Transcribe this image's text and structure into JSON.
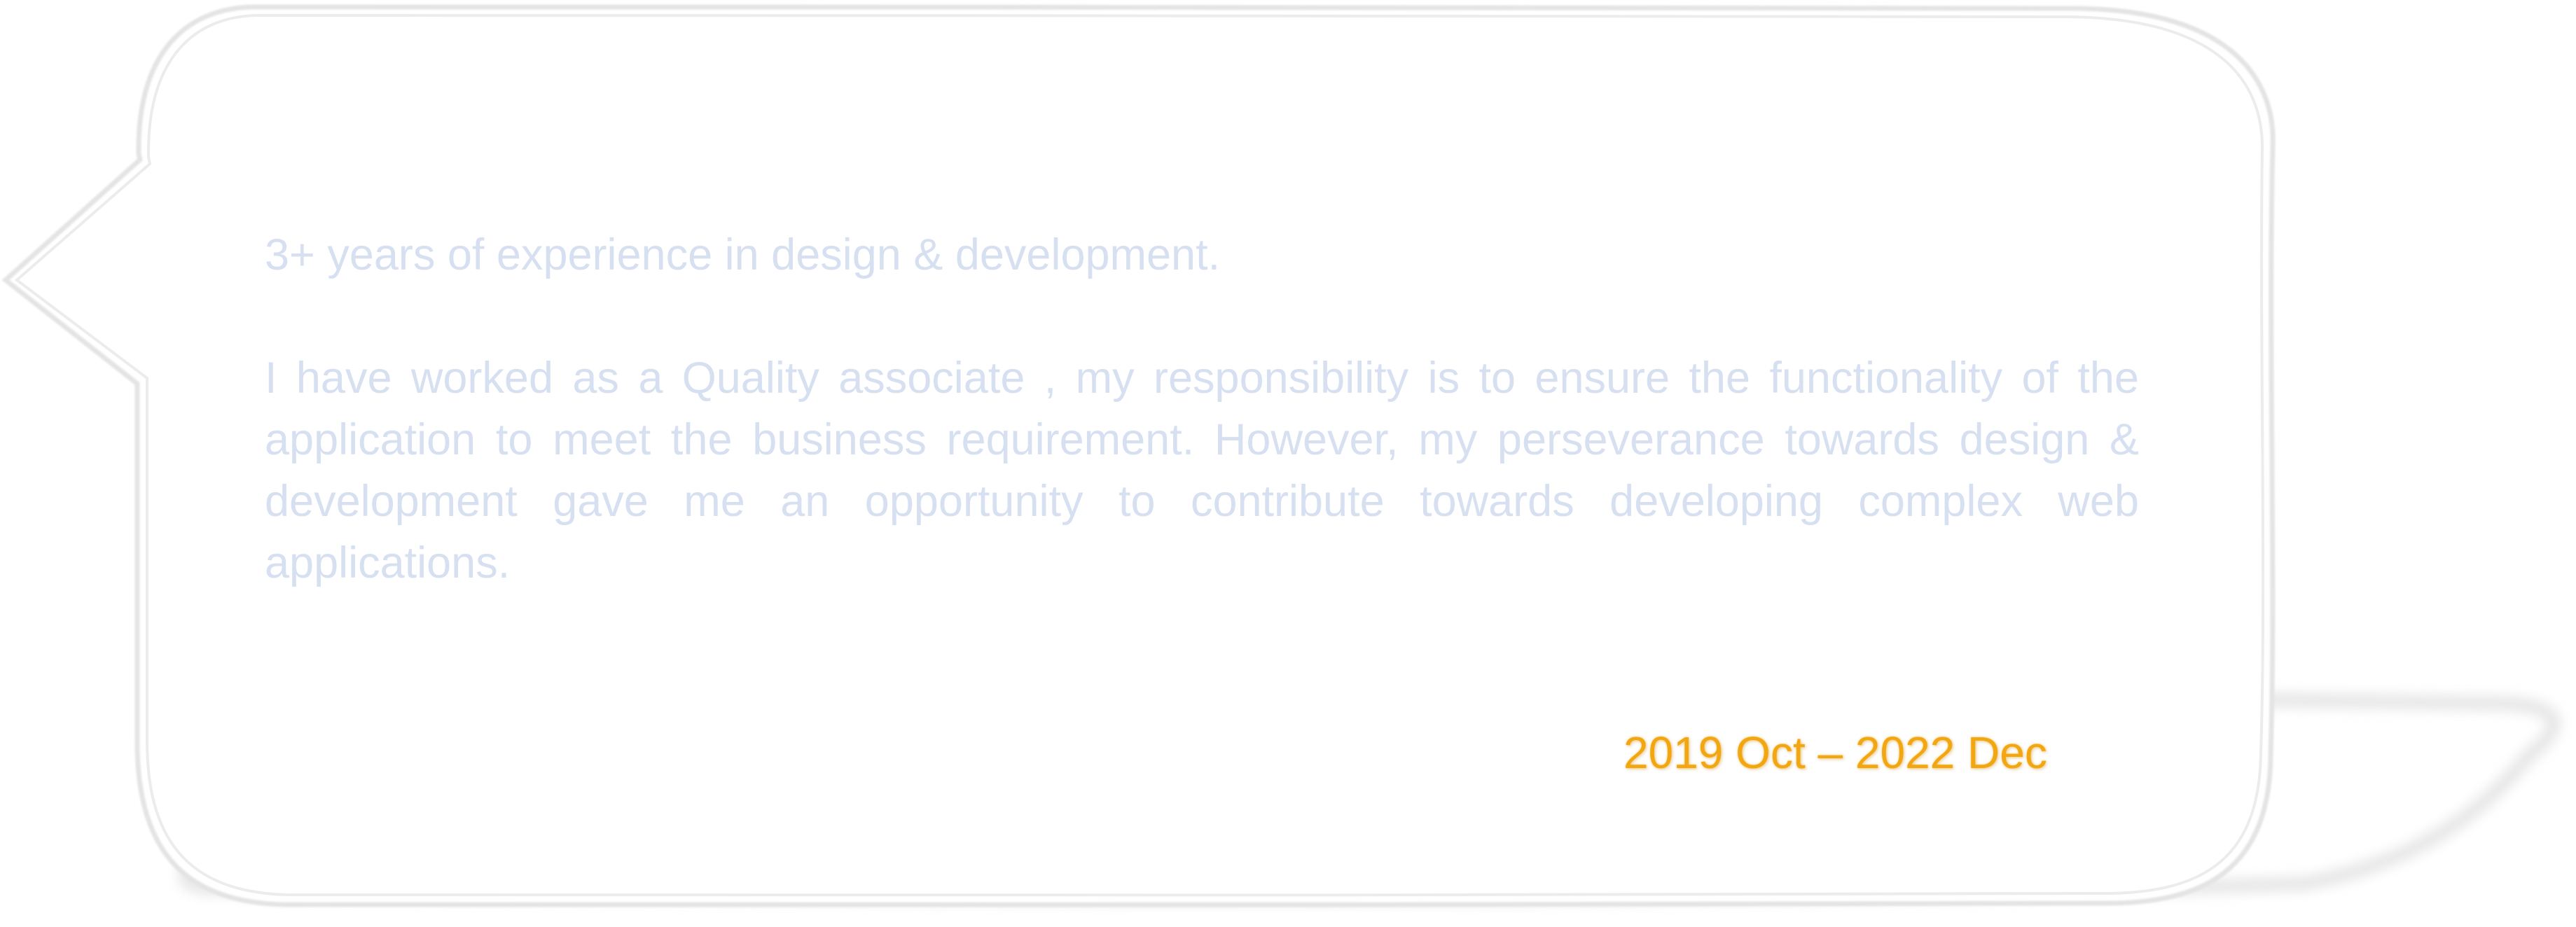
{
  "summary": {
    "headline": "3+ years of experience in design & development.",
    "paragraph": "I have worked as a Quality associate , my responsibility is to ensure the functionality of the application to meet the business requirement. However, my perseverance towards design & development gave me an opportunity to contribute towards developing complex web applications."
  },
  "timeline": {
    "period": "2019 Oct – 2022 Dec"
  },
  "colors": {
    "body_text": "#d6e0f1",
    "period_text": "#f2a712",
    "bubble_outline": "#e6e6e6"
  }
}
